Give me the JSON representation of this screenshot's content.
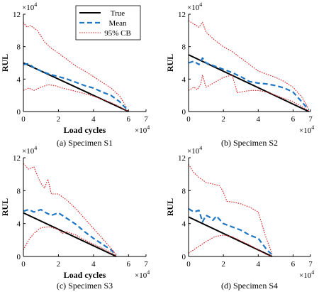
{
  "chart_data": [
    {
      "type": "line",
      "caption": "(a) Specimen S1",
      "ylabel": "RUL",
      "xlabel": "Load cycles",
      "xlim": [
        0,
        7
      ],
      "ylim": [
        0,
        12
      ],
      "xticks": [
        0,
        2,
        4,
        6,
        7
      ],
      "yticks": [
        0,
        4,
        8,
        12
      ],
      "x_multiplier": "×10^4",
      "y_multiplier": "×10^4",
      "show_legend": true,
      "legend": [
        "True",
        "Mean",
        "95% CB"
      ],
      "series": [
        {
          "name": "True",
          "style": "solid",
          "color": "#000000",
          "x": [
            0,
            6.0
          ],
          "y": [
            6.0,
            0
          ]
        },
        {
          "name": "Mean",
          "style": "dashed",
          "color": "#1f77c4",
          "x": [
            0,
            0.3,
            0.6,
            1.0,
            1.5,
            2.0,
            2.5,
            3.0,
            3.5,
            4.0,
            4.5,
            5.0,
            5.5,
            5.9
          ],
          "y": [
            5.8,
            5.9,
            5.4,
            5.0,
            4.6,
            4.3,
            4.0,
            3.6,
            3.2,
            2.9,
            2.4,
            2.0,
            1.2,
            0.3
          ]
        },
        {
          "name": "95% CB upper",
          "style": "dotted",
          "color": "#d62020",
          "x": [
            0,
            0.2,
            0.4,
            0.8,
            1.2,
            1.6,
            2.0,
            2.5,
            3.0,
            3.5,
            4.0,
            4.5,
            5.0,
            5.5,
            5.9
          ],
          "y": [
            11.0,
            10.4,
            10.6,
            10.0,
            8.6,
            7.8,
            7.2,
            6.4,
            5.6,
            5.0,
            4.3,
            3.6,
            2.9,
            1.9,
            0.5
          ]
        },
        {
          "name": "95% CB lower",
          "style": "dotted",
          "color": "#d62020",
          "x": [
            0,
            0.3,
            0.6,
            1.0,
            1.4,
            1.8,
            2.2,
            2.6,
            3.0,
            3.5,
            4.0,
            4.5,
            5.0,
            5.5,
            5.9
          ],
          "y": [
            2.6,
            2.9,
            2.6,
            3.0,
            3.3,
            3.2,
            2.9,
            2.7,
            2.5,
            2.2,
            1.9,
            1.5,
            1.1,
            0.6,
            0.1
          ]
        }
      ]
    },
    {
      "type": "line",
      "caption": "(b) Specimen S2",
      "ylabel": "RUL",
      "xlabel": "",
      "xlim": [
        0,
        7
      ],
      "ylim": [
        0,
        12
      ],
      "xticks": [
        0,
        2,
        4,
        6,
        7
      ],
      "yticks": [
        0,
        4,
        8,
        12
      ],
      "x_multiplier": "×10^4",
      "y_multiplier": "×10^4",
      "show_legend": false,
      "series": [
        {
          "name": "True",
          "style": "solid",
          "color": "#000000",
          "x": [
            0,
            6.9
          ],
          "y": [
            7.0,
            0
          ]
        },
        {
          "name": "Mean",
          "style": "dashed",
          "color": "#1f77c4",
          "x": [
            0,
            0.3,
            0.6,
            0.8,
            1.0,
            1.5,
            2.0,
            2.5,
            3.0,
            3.5,
            4.0,
            4.5,
            5.0,
            5.5,
            6.0,
            6.5,
            6.9
          ],
          "y": [
            6.0,
            6.2,
            5.8,
            6.6,
            6.0,
            5.6,
            5.2,
            4.8,
            4.3,
            3.7,
            3.5,
            3.4,
            3.2,
            2.9,
            2.4,
            1.2,
            0.2
          ]
        },
        {
          "name": "95% CB upper",
          "style": "dotted",
          "color": "#d62020",
          "x": [
            0,
            0.3,
            0.6,
            0.8,
            1.0,
            1.5,
            2.0,
            2.5,
            3.0,
            3.5,
            4.0,
            4.5,
            5.0,
            5.5,
            6.0,
            6.5,
            6.9
          ],
          "y": [
            11.2,
            10.8,
            10.4,
            11.0,
            9.8,
            8.8,
            8.0,
            7.4,
            6.6,
            5.8,
            5.0,
            4.6,
            4.2,
            3.7,
            3.0,
            1.8,
            0.3
          ]
        },
        {
          "name": "95% CB lower",
          "style": "dotted",
          "color": "#d62020",
          "x": [
            0,
            0.3,
            0.5,
            0.7,
            0.8,
            1.0,
            1.5,
            2.0,
            2.5,
            2.8,
            3.2,
            3.6,
            4.0,
            4.5,
            5.0,
            5.5,
            6.0,
            6.5,
            6.9
          ],
          "y": [
            2.6,
            3.0,
            2.7,
            3.4,
            4.5,
            3.0,
            3.6,
            4.2,
            4.5,
            2.3,
            2.5,
            2.6,
            2.6,
            2.4,
            2.0,
            1.6,
            1.2,
            0.6,
            0.1
          ]
        }
      ]
    },
    {
      "type": "line",
      "caption": "(c) Specimen S3",
      "ylabel": "RUL",
      "xlabel": "Load cycles",
      "xlim": [
        0,
        7
      ],
      "ylim": [
        0,
        12
      ],
      "xticks": [
        0,
        2,
        4,
        6,
        7
      ],
      "yticks": [
        0,
        4,
        8,
        12
      ],
      "x_multiplier": "×10^4",
      "y_multiplier": "×10^4",
      "show_legend": false,
      "series": [
        {
          "name": "True",
          "style": "solid",
          "color": "#000000",
          "x": [
            0,
            5.3
          ],
          "y": [
            5.3,
            0
          ]
        },
        {
          "name": "Mean",
          "style": "dashed",
          "color": "#1f77c4",
          "x": [
            0,
            0.3,
            0.6,
            1.0,
            1.3,
            1.6,
            2.0,
            2.5,
            3.0,
            3.5,
            4.0,
            4.5,
            5.0,
            5.3
          ],
          "y": [
            5.5,
            5.7,
            5.4,
            5.7,
            5.3,
            5.0,
            5.3,
            4.6,
            3.9,
            3.0,
            2.2,
            1.5,
            0.8,
            0.2
          ]
        },
        {
          "name": "95% CB upper",
          "style": "dotted",
          "color": "#d62020",
          "x": [
            0,
            0.3,
            0.6,
            0.8,
            1.0,
            1.2,
            1.4,
            1.6,
            2.0,
            2.5,
            3.0,
            3.5,
            4.0,
            4.5,
            5.0,
            5.3
          ],
          "y": [
            11.3,
            10.6,
            10.9,
            9.8,
            8.9,
            8.3,
            9.4,
            7.6,
            7.6,
            6.8,
            5.8,
            4.6,
            3.4,
            2.2,
            1.0,
            0.2
          ]
        },
        {
          "name": "95% CB lower",
          "style": "dotted",
          "color": "#d62020",
          "x": [
            0,
            0.3,
            0.6,
            1.0,
            1.5,
            2.0,
            2.2,
            2.5,
            3.0,
            3.5,
            4.0,
            4.5,
            5.0,
            5.3
          ],
          "y": [
            0.8,
            2.0,
            2.8,
            3.5,
            3.6,
            3.3,
            2.8,
            3.0,
            2.6,
            2.0,
            1.5,
            1.0,
            0.5,
            0.1
          ]
        }
      ]
    },
    {
      "type": "line",
      "caption": "(d) Specimen S4",
      "ylabel": "RUL",
      "xlabel": "",
      "xlim": [
        0,
        7
      ],
      "ylim": [
        0,
        12
      ],
      "xticks": [
        0,
        2,
        4,
        6,
        7
      ],
      "yticks": [
        0,
        4,
        8,
        12
      ],
      "x_multiplier": "×10^4",
      "y_multiplier": "×10^4",
      "show_legend": false,
      "series": [
        {
          "name": "True",
          "style": "solid",
          "color": "#000000",
          "x": [
            0,
            4.8
          ],
          "y": [
            4.8,
            0
          ]
        },
        {
          "name": "Mean",
          "style": "dashed",
          "color": "#1f77c4",
          "x": [
            0,
            0.3,
            0.6,
            0.8,
            1.0,
            1.2,
            1.4,
            1.6,
            2.0,
            2.5,
            3.0,
            3.5,
            4.0,
            4.5,
            4.8
          ],
          "y": [
            5.8,
            5.4,
            5.6,
            4.2,
            5.0,
            4.8,
            4.4,
            4.9,
            4.0,
            3.6,
            3.2,
            2.6,
            2.2,
            0.8,
            0.2
          ]
        },
        {
          "name": "95% CB upper",
          "style": "dotted",
          "color": "#d62020",
          "x": [
            0,
            0.3,
            0.6,
            1.0,
            1.4,
            1.8,
            2.0,
            2.2,
            2.6,
            3.0,
            3.5,
            4.0,
            4.4,
            4.8
          ],
          "y": [
            11.2,
            10.2,
            9.6,
            9.0,
            8.8,
            8.6,
            7.8,
            6.7,
            6.6,
            6.4,
            6.0,
            5.4,
            2.6,
            0.3
          ]
        },
        {
          "name": "95% CB lower",
          "style": "dotted",
          "color": "#d62020",
          "x": [
            0,
            0.5,
            1.0,
            1.5,
            2.0,
            2.5,
            3.0,
            3.5,
            4.0,
            4.5,
            4.8
          ],
          "y": [
            0.4,
            1.1,
            1.8,
            2.4,
            2.6,
            2.4,
            1.9,
            1.4,
            0.8,
            0.2,
            0.05
          ]
        }
      ]
    }
  ]
}
